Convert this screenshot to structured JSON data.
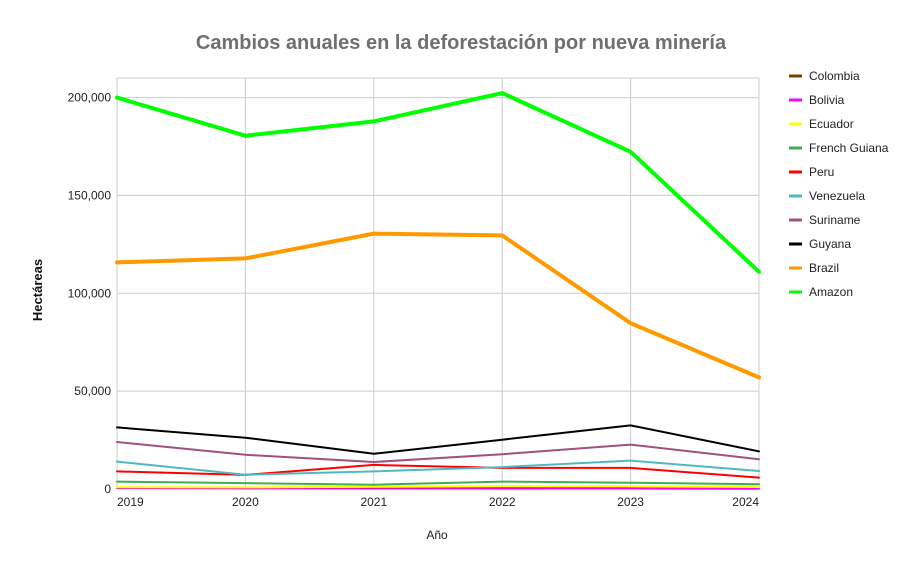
{
  "chart_data": {
    "type": "line",
    "title": "Cambios anuales en la deforestación por nueva minería",
    "xlabel": "Año",
    "ylabel": "Hectáreas",
    "x": [
      2019,
      2020,
      2021,
      2022,
      2023,
      2024
    ],
    "x_tick_labels": [
      "2019",
      "2020",
      "2021",
      "2022",
      "2023",
      "2024"
    ],
    "ylim": [
      0,
      210000
    ],
    "y_ticks": [
      0,
      50000,
      100000,
      150000,
      200000
    ],
    "y_tick_labels": [
      "0",
      "50,000",
      "100,000",
      "150,000",
      "200,000"
    ],
    "grid": true,
    "legend_position": "right",
    "series": [
      {
        "name": "Colombia",
        "color": "#7b3f00",
        "width": 2,
        "values": [
          500,
          400,
          300,
          300,
          300,
          200
        ]
      },
      {
        "name": "Bolivia",
        "color": "#ff00ff",
        "width": 2,
        "values": [
          600,
          500,
          600,
          500,
          500,
          400
        ]
      },
      {
        "name": "Ecuador",
        "color": "#ffff00",
        "width": 2,
        "values": [
          900,
          800,
          1100,
          1500,
          1400,
          1000
        ]
      },
      {
        "name": " French Guiana",
        "color": "#3cb04a",
        "width": 2,
        "values": [
          3800,
          3000,
          2200,
          3800,
          3200,
          2400
        ]
      },
      {
        "name": "Peru",
        "color": "#ff0000",
        "width": 2,
        "values": [
          9000,
          7200,
          12300,
          10800,
          10800,
          5800
        ]
      },
      {
        "name": "Venezuela",
        "color": "#4fb8c0",
        "width": 2,
        "values": [
          14000,
          7300,
          9000,
          11200,
          14500,
          9200
        ]
      },
      {
        "name": "Suriname",
        "color": "#a0527a",
        "width": 2,
        "values": [
          24000,
          17500,
          13800,
          17800,
          22700,
          15200
        ]
      },
      {
        "name": "Guyana",
        "color": "#000000",
        "width": 2,
        "values": [
          31500,
          26200,
          18000,
          25200,
          32500,
          19200
        ]
      },
      {
        "name": "Brazil",
        "color": "#ff9900",
        "width": 4,
        "values": [
          115800,
          117800,
          130500,
          129600,
          84700,
          57000
        ]
      },
      {
        "name": "Amazon",
        "color": "#00ff00",
        "width": 4,
        "values": [
          200000,
          180500,
          187800,
          202300,
          172300,
          111000
        ]
      }
    ]
  }
}
